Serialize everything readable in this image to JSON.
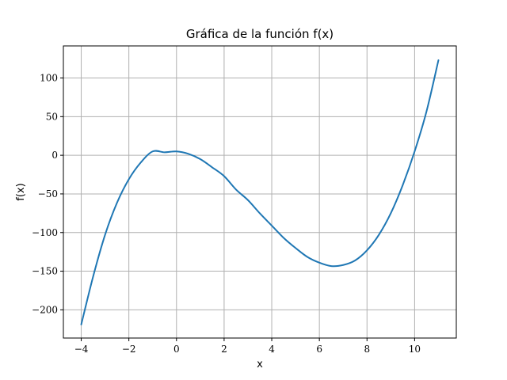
{
  "chart_data": {
    "type": "line",
    "title": "Gráfica de la función f(x)",
    "xlabel": "x",
    "ylabel": "f(x)",
    "xlim": [
      -4.75,
      11.75
    ],
    "ylim": [
      -236.5,
      141.5
    ],
    "x_ticks": [
      -4,
      -2,
      0,
      2,
      4,
      6,
      8,
      10
    ],
    "x_tick_labels": [
      "−4",
      "−2",
      "0",
      "2",
      "4",
      "6",
      "8",
      "10"
    ],
    "y_ticks": [
      -200,
      -150,
      -100,
      -50,
      0,
      50,
      100
    ],
    "y_tick_labels": [
      "−200",
      "−150",
      "−100",
      "−50",
      "0",
      "50",
      "100"
    ],
    "grid": true,
    "legend": "none",
    "series": [
      {
        "color": "#1f77b4",
        "x": [
          -4,
          -3.5,
          -3,
          -2.5,
          -2,
          -1.5,
          -1,
          -0.5,
          0,
          0.5,
          1,
          1.5,
          2,
          2.5,
          3,
          3.5,
          4,
          4.5,
          5,
          5.5,
          6,
          6.5,
          7,
          7.5,
          8,
          8.5,
          9,
          9.5,
          10,
          10.5,
          11
        ],
        "y": [
          -219,
          -156.875,
          -103,
          -61.625,
          -31,
          -9.375,
          5,
          3.875,
          5,
          1.875,
          -5,
          -15.625,
          -27,
          -44.375,
          -58,
          -75.125,
          -91,
          -106.875,
          -120,
          -131.625,
          -139,
          -143.375,
          -142,
          -136.125,
          -123,
          -102.875,
          -75,
          -38.625,
          5,
          56.875,
          123
        ]
      }
    ]
  }
}
